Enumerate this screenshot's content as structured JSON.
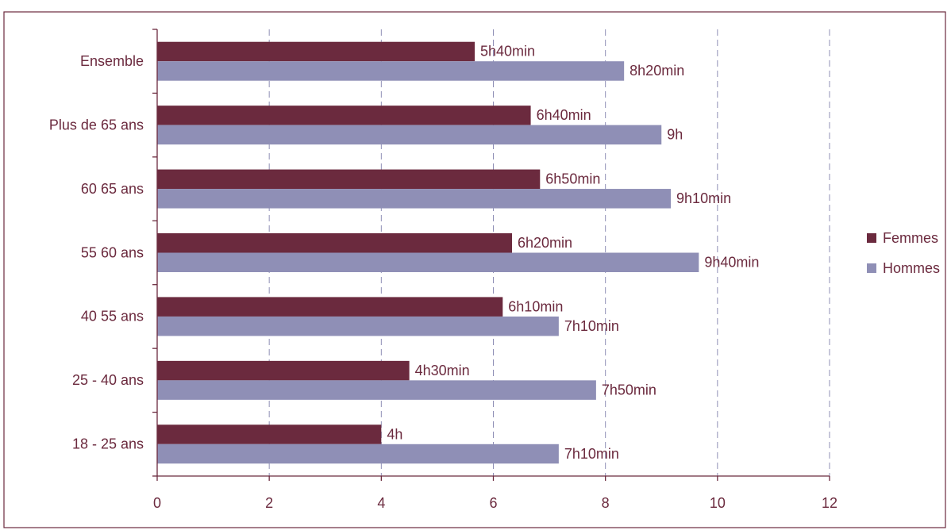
{
  "chart_data": {
    "type": "bar",
    "orientation": "horizontal",
    "categories": [
      "Ensemble",
      "Plus de 65 ans",
      "60  65 ans",
      "55  60 ans",
      "40  55 ans",
      "25 - 40 ans",
      "18 - 25 ans"
    ],
    "series": [
      {
        "name": "Femmes",
        "color": "#6b2a3e",
        "values": [
          5.667,
          6.667,
          6.833,
          6.333,
          6.167,
          4.5,
          4.0
        ],
        "labels": [
          "5h40min",
          "6h40min",
          "6h50min",
          "6h20min",
          "6h10min",
          "4h30min",
          "4h"
        ]
      },
      {
        "name": "Hommes",
        "color": "#8f8fb6",
        "values": [
          8.333,
          9.0,
          9.167,
          9.667,
          7.167,
          7.833,
          7.167
        ],
        "labels": [
          "8h20min",
          "9h",
          "9h10min",
          "9h40min",
          "7h10min",
          "7h50min",
          "7h10min"
        ]
      }
    ],
    "xlim": [
      0,
      12
    ],
    "xticks": [
      "0",
      "2",
      "4",
      "6",
      "8",
      "10",
      "12"
    ],
    "grid": "vertical dashed",
    "legend_position": "right",
    "xlabel": "",
    "ylabel": "",
    "title": ""
  }
}
